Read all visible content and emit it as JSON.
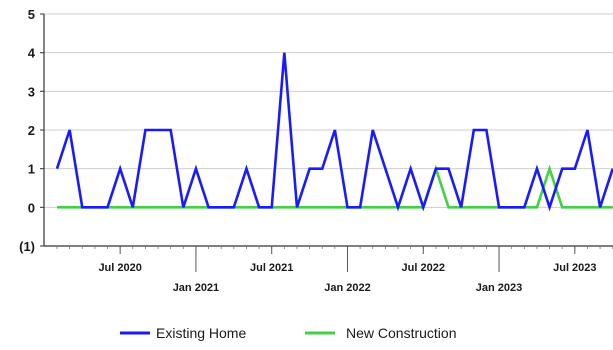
{
  "chart_data": {
    "type": "line",
    "title": "",
    "xlabel": "",
    "ylabel": "",
    "ylim": [
      -1,
      5
    ],
    "grid": true,
    "legend_position": "bottom",
    "y_ticks": [
      {
        "value": 5,
        "label": "5"
      },
      {
        "value": 4,
        "label": "4"
      },
      {
        "value": 3,
        "label": "3"
      },
      {
        "value": 2,
        "label": "2"
      },
      {
        "value": 1,
        "label": "1"
      },
      {
        "value": 0,
        "label": "0"
      },
      {
        "value": -1,
        "label": "(1)"
      }
    ],
    "x_ticks": [
      {
        "date": "2020-07",
        "label": "Jul 2020"
      },
      {
        "date": "2021-01",
        "label": "Jan 2021"
      },
      {
        "date": "2021-07",
        "label": "Jul 2021"
      },
      {
        "date": "2022-01",
        "label": "Jan 2022"
      },
      {
        "date": "2022-07",
        "label": "Jul 2022"
      },
      {
        "date": "2023-01",
        "label": "Jan 2023"
      },
      {
        "date": "2023-07",
        "label": "Jul 2023"
      }
    ],
    "x": [
      "2020-02",
      "2020-03",
      "2020-04",
      "2020-05",
      "2020-06",
      "2020-07",
      "2020-08",
      "2020-09",
      "2020-10",
      "2020-11",
      "2020-12",
      "2021-01",
      "2021-02",
      "2021-03",
      "2021-04",
      "2021-05",
      "2021-06",
      "2021-07",
      "2021-08",
      "2021-09",
      "2021-10",
      "2021-11",
      "2021-12",
      "2022-01",
      "2022-02",
      "2022-03",
      "2022-04",
      "2022-05",
      "2022-06",
      "2022-07",
      "2022-08",
      "2022-09",
      "2022-10",
      "2022-11",
      "2022-12",
      "2023-01",
      "2023-02",
      "2023-03",
      "2023-04",
      "2023-05",
      "2023-06",
      "2023-07",
      "2023-08",
      "2023-09",
      "2023-10"
    ],
    "series": [
      {
        "name": "Existing Home",
        "color": "#1a1aff",
        "values": [
          1,
          2,
          0,
          0,
          0,
          1,
          0,
          2,
          2,
          2,
          0,
          1,
          0,
          0,
          0,
          1,
          0,
          0,
          4,
          0,
          1,
          1,
          2,
          0,
          0,
          2,
          1,
          0,
          1,
          0,
          1,
          1,
          0,
          2,
          2,
          0,
          0,
          0,
          1,
          0,
          1,
          1,
          2,
          0,
          1
        ]
      },
      {
        "name": "New Construction",
        "color": "#44d044",
        "values": [
          0,
          0,
          0,
          0,
          0,
          0,
          0,
          0,
          0,
          0,
          0,
          0,
          0,
          0,
          0,
          0,
          0,
          0,
          0,
          0,
          0,
          0,
          0,
          0,
          0,
          0,
          0,
          0,
          0,
          0,
          1,
          0,
          0,
          0,
          0,
          0,
          0,
          0,
          0,
          1,
          0,
          0,
          0,
          0,
          0
        ]
      }
    ]
  }
}
